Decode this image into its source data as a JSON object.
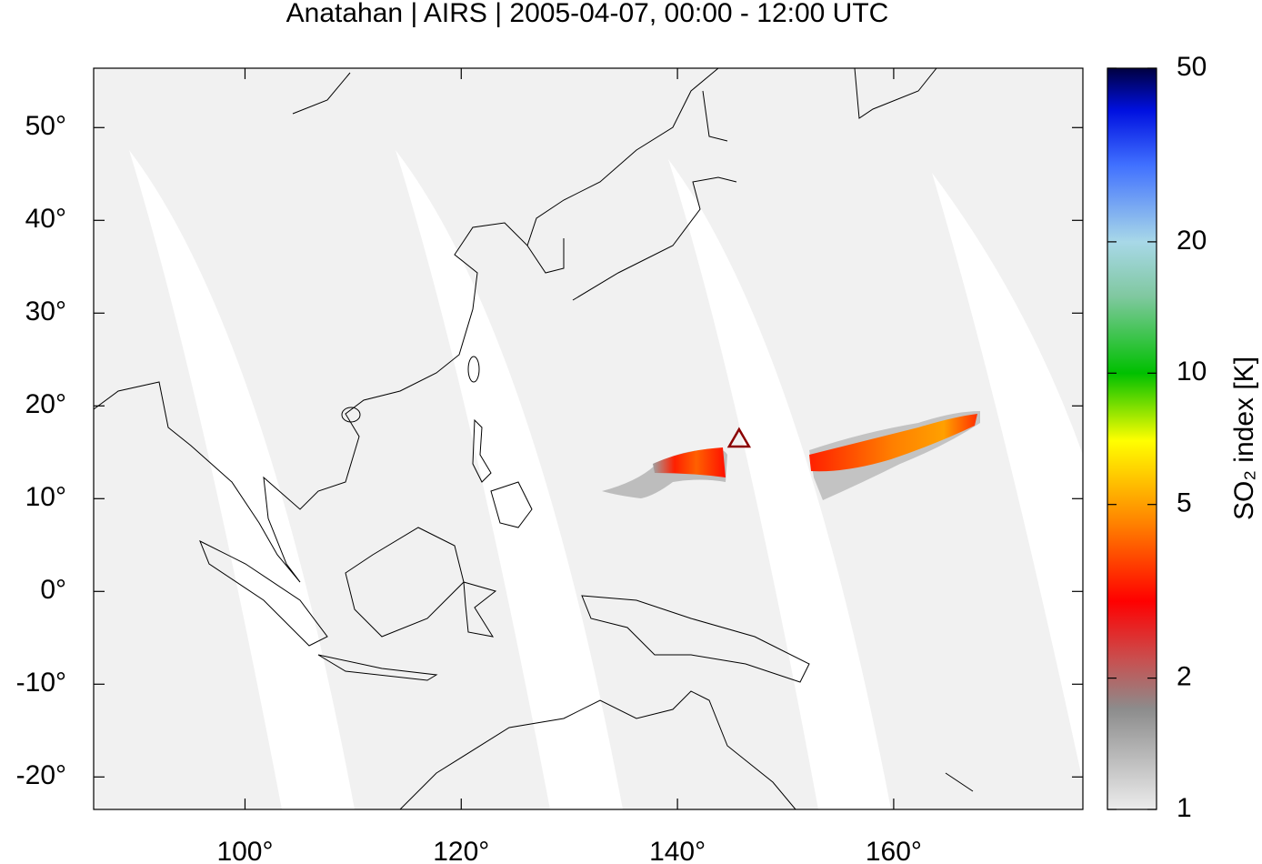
{
  "chart_data": {
    "type": "map",
    "title": "Anatahan | AIRS | 2005-04-07, 00:00 - 12:00 UTC",
    "xlim": [
      86,
      177.5
    ],
    "ylim": [
      -23.5,
      56.4
    ],
    "xticks": [
      {
        "value": 100,
        "label": "100°"
      },
      {
        "value": 120,
        "label": "120°"
      },
      {
        "value": 140,
        "label": "140°"
      },
      {
        "value": 160,
        "label": "160°"
      }
    ],
    "yticks": [
      {
        "value": -20,
        "label": "-20°"
      },
      {
        "value": -10,
        "label": "-10°"
      },
      {
        "value": 0,
        "label": "0°"
      },
      {
        "value": 10,
        "label": "10°"
      },
      {
        "value": 20,
        "label": "20°"
      },
      {
        "value": 30,
        "label": "30°"
      },
      {
        "value": 40,
        "label": "40°"
      },
      {
        "value": 50,
        "label": "50°"
      }
    ],
    "marker": {
      "lon": 145.7,
      "lat": 16.4,
      "color": "#8b0000"
    },
    "colorbar": {
      "label": "SO₂ index [K]",
      "lim": [
        1,
        50
      ],
      "log": true,
      "ticks": [
        1,
        2,
        5,
        10,
        20,
        50
      ],
      "stops": [
        {
          "value": 1,
          "color": "#ececec"
        },
        {
          "value": 1.7,
          "color": "#8c8c8c"
        },
        {
          "value": 2.2,
          "color": "#c85050"
        },
        {
          "value": 3,
          "color": "#ff0000"
        },
        {
          "value": 4.5,
          "color": "#ff8000"
        },
        {
          "value": 7,
          "color": "#ffff00"
        },
        {
          "value": 10,
          "color": "#00c000"
        },
        {
          "value": 15,
          "color": "#80c8a0"
        },
        {
          "value": 20,
          "color": "#a8d8e8"
        },
        {
          "value": 30,
          "color": "#4070ff"
        },
        {
          "value": 40,
          "color": "#0010e0"
        },
        {
          "value": 50,
          "color": "#000040"
        }
      ]
    }
  }
}
